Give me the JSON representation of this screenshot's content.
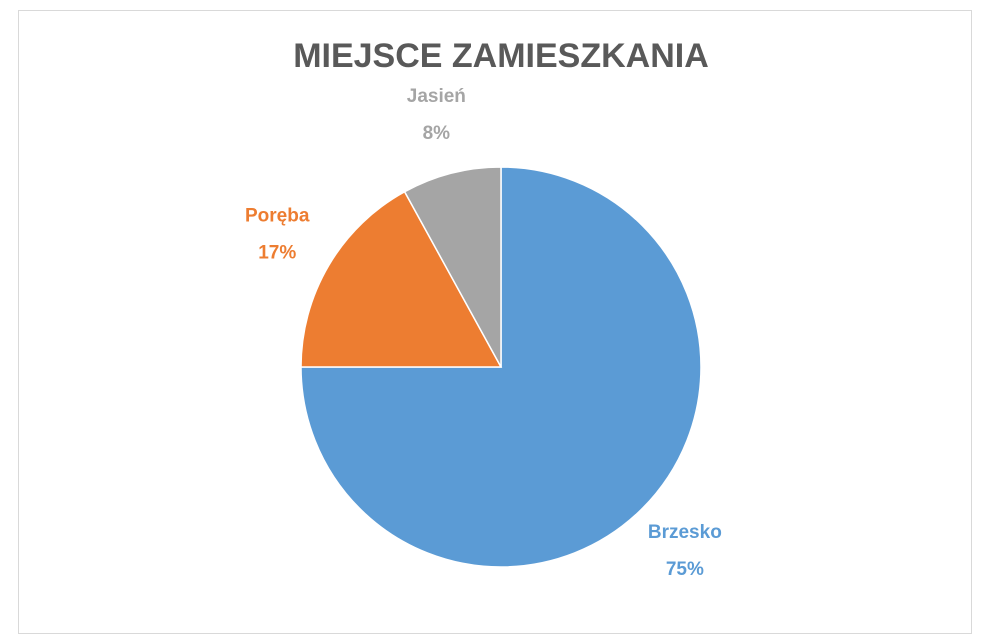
{
  "chart_data": {
    "type": "pie",
    "title": "MIEJSCE ZAMIESZKANIA",
    "categories": [
      "Brzesko",
      "Poręba",
      "Jasień"
    ],
    "values": [
      75,
      17,
      8
    ],
    "value_labels": [
      "75%",
      "17%",
      "8%"
    ],
    "colors": [
      "#5b9bd5",
      "#ed7d31",
      "#a5a5a5"
    ]
  }
}
